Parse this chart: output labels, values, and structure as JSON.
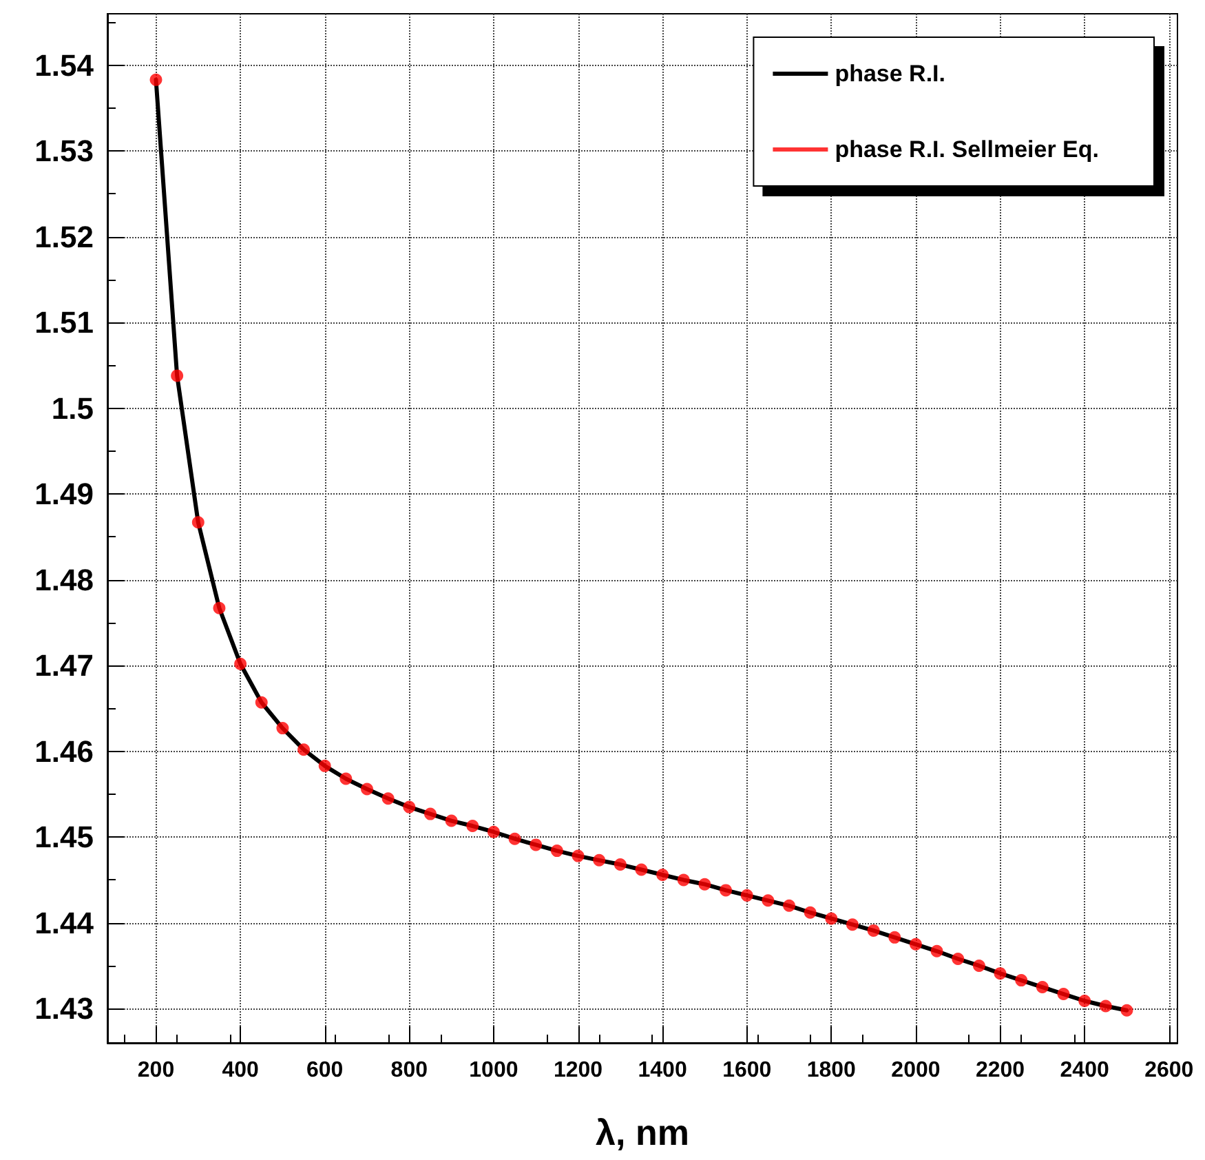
{
  "chart_data": {
    "type": "line",
    "xlabel": "λ, nm",
    "x": [
      200,
      250,
      300,
      350,
      400,
      450,
      500,
      550,
      600,
      650,
      700,
      750,
      800,
      850,
      900,
      950,
      1000,
      1050,
      1100,
      1150,
      1200,
      1250,
      1300,
      1350,
      1400,
      1450,
      1500,
      1550,
      1600,
      1650,
      1700,
      1750,
      1800,
      1850,
      1900,
      1950,
      2000,
      2050,
      2100,
      2150,
      2200,
      2250,
      2300,
      2350,
      2400,
      2450,
      2500
    ],
    "series": [
      {
        "name": "phase R.I.",
        "color": "#000000",
        "marker": "none",
        "values": [
          1.5383,
          1.5038,
          1.4867,
          1.4767,
          1.4702,
          1.4657,
          1.4627,
          1.4602,
          1.4583,
          1.4568,
          1.4556,
          1.4545,
          1.4535,
          1.4527,
          1.4519,
          1.4513,
          1.4506,
          1.4498,
          1.4491,
          1.4484,
          1.4478,
          1.4473,
          1.4468,
          1.4462,
          1.4456,
          1.445,
          1.4445,
          1.4438,
          1.4432,
          1.4426,
          1.442,
          1.4412,
          1.4405,
          1.4398,
          1.4391,
          1.4383,
          1.4375,
          1.4367,
          1.4358,
          1.435,
          1.4341,
          1.4333,
          1.4325,
          1.4317,
          1.4309,
          1.4303,
          1.4298
        ]
      },
      {
        "name": "phase R.I. Sellmeier Eq.",
        "color": "#ff0000",
        "type": "scatter",
        "marker": "circle",
        "values": [
          1.5383,
          1.5038,
          1.4867,
          1.4767,
          1.4702,
          1.4657,
          1.4627,
          1.4602,
          1.4583,
          1.4568,
          1.4556,
          1.4545,
          1.4535,
          1.4527,
          1.4519,
          1.4513,
          1.4506,
          1.4498,
          1.4491,
          1.4484,
          1.4478,
          1.4473,
          1.4468,
          1.4462,
          1.4456,
          1.445,
          1.4445,
          1.4438,
          1.4432,
          1.4426,
          1.442,
          1.4412,
          1.4405,
          1.4398,
          1.4391,
          1.4383,
          1.4375,
          1.4367,
          1.4358,
          1.435,
          1.4341,
          1.4333,
          1.4325,
          1.4317,
          1.4309,
          1.4303,
          1.4298
        ]
      }
    ],
    "xlim": [
      85,
      2620
    ],
    "xticks": [
      200,
      400,
      600,
      800,
      1000,
      1200,
      1400,
      1600,
      1800,
      2000,
      2200,
      2400,
      2600
    ],
    "ylim": [
      1.426,
      1.546
    ],
    "yticks": [
      1.43,
      1.44,
      1.45,
      1.46,
      1.47,
      1.48,
      1.49,
      1.5,
      1.51,
      1.52,
      1.53,
      1.54
    ],
    "grid": true,
    "legend": "top right",
    "line_style": "solid"
  }
}
